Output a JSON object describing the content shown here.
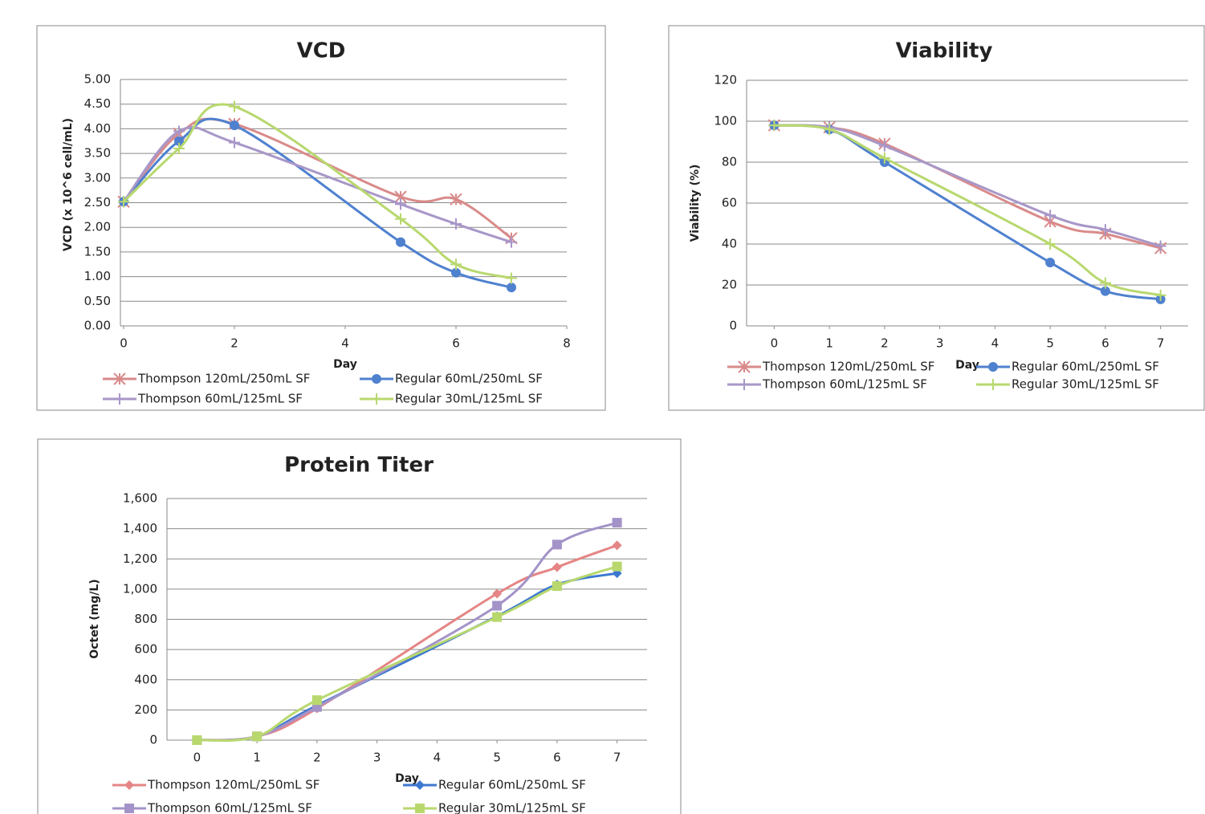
{
  "chart_data": [
    {
      "type": "line",
      "title": "VCD",
      "x_label": "Day",
      "y_label": "VCD  (x 10^6 cell/mL)",
      "x": [
        0,
        1,
        2,
        5,
        6,
        7
      ],
      "xlim": [
        0,
        8
      ],
      "xticks": [
        0,
        2,
        4,
        6,
        8
      ],
      "ylim": [
        0,
        5
      ],
      "yticks": [
        {
          "value": 0,
          "label": "0.00"
        },
        {
          "value": 0.5,
          "label": "0.50"
        },
        {
          "value": 1,
          "label": "1.00"
        },
        {
          "value": 1.5,
          "label": "1.50"
        },
        {
          "value": 2,
          "label": "2.00"
        },
        {
          "value": 2.5,
          "label": "2.50"
        },
        {
          "value": 3,
          "label": "3.00"
        },
        {
          "value": 3.5,
          "label": "3.50"
        },
        {
          "value": 4,
          "label": "4.00"
        },
        {
          "value": 4.5,
          "label": "4.50"
        },
        {
          "value": 5,
          "label": "5.00"
        }
      ],
      "grid": true,
      "series": [
        {
          "name": "Thompson  120mL/250mL SF",
          "color": "#d98a8a",
          "marker": "star",
          "values": [
            2.52,
            3.9,
            4.1,
            2.62,
            2.57,
            1.78
          ]
        },
        {
          "name": "Regular 60mL/250mL SF",
          "color": "#4f81cf",
          "marker": "circle",
          "values": [
            2.52,
            3.75,
            4.07,
            1.7,
            1.08,
            0.78
          ]
        },
        {
          "name": "Thompson  60mL/125mL SF",
          "color": "#a897c8",
          "marker": "plus",
          "values": [
            2.52,
            3.95,
            3.72,
            2.47,
            2.07,
            1.7
          ]
        },
        {
          "name": "Regular 30mL/125mL SF",
          "color": "#b8d86e",
          "marker": "plus",
          "values": [
            2.52,
            3.6,
            4.45,
            2.17,
            1.25,
            0.97
          ]
        }
      ]
    },
    {
      "type": "line",
      "title": "Viability",
      "x_label": "Day",
      "y_label": "Viability (%)",
      "x": [
        0,
        1,
        2,
        5,
        6,
        7
      ],
      "xlim": [
        -0.5,
        7.5
      ],
      "xticks": [
        0,
        1,
        2,
        3,
        4,
        5,
        6,
        7
      ],
      "ylim": [
        0,
        120
      ],
      "yticks": [
        0,
        20,
        40,
        60,
        80,
        100,
        120
      ],
      "grid": true,
      "series": [
        {
          "name": "Thompson  120mL/250mL SF",
          "color": "#d98a8a",
          "marker": "star",
          "values": [
            98,
            97,
            89,
            51,
            45,
            38
          ]
        },
        {
          "name": "Regular 60mL/250mL SF",
          "color": "#4f81cf",
          "marker": "circle",
          "values": [
            98,
            96,
            80,
            31,
            17,
            13
          ]
        },
        {
          "name": "Thompson  60mL/125mL SF",
          "color": "#a897c8",
          "marker": "plus",
          "values": [
            98,
            97,
            88,
            54,
            47,
            39
          ]
        },
        {
          "name": "Regular 30mL/125mL SF",
          "color": "#b8d86e",
          "marker": "plus",
          "values": [
            98,
            96,
            82,
            40,
            21,
            15
          ]
        }
      ]
    },
    {
      "type": "line",
      "title": "Protein Titer",
      "x_label": "Day",
      "y_label": "Octet (mg/L)",
      "x": [
        0,
        1,
        2,
        5,
        6,
        7
      ],
      "xlim": [
        -0.5,
        7.5
      ],
      "xticks": [
        0,
        1,
        2,
        3,
        4,
        5,
        6,
        7
      ],
      "ylim": [
        0,
        1600
      ],
      "yticks": [
        0,
        200,
        400,
        600,
        800,
        {
          "value": 1000,
          "label": "1,000"
        },
        {
          "value": 1200,
          "label": "1,200"
        },
        {
          "value": 1400,
          "label": "1,400"
        },
        {
          "value": 1600,
          "label": "1,600"
        }
      ],
      "grid": true,
      "series": [
        {
          "name": "Thompson  120mL/250mL SF",
          "color": "#e58585",
          "marker": "diamond",
          "values": [
            0,
            25,
            210,
            970,
            1145,
            1290
          ]
        },
        {
          "name": "Regular 60mL/250mL SF",
          "color": "#3d78d0",
          "marker": "diamond",
          "values": [
            0,
            25,
            230,
            820,
            1030,
            1105
          ]
        },
        {
          "name": "Thompson  60mL/125mL SF",
          "color": "#a393c8",
          "marker": "square",
          "values": [
            0,
            25,
            220,
            890,
            1295,
            1440
          ]
        },
        {
          "name": "Regular 30mL/125mL SF",
          "color": "#b8d86e",
          "marker": "square",
          "values": [
            0,
            25,
            265,
            815,
            1020,
            1150
          ]
        }
      ]
    }
  ]
}
